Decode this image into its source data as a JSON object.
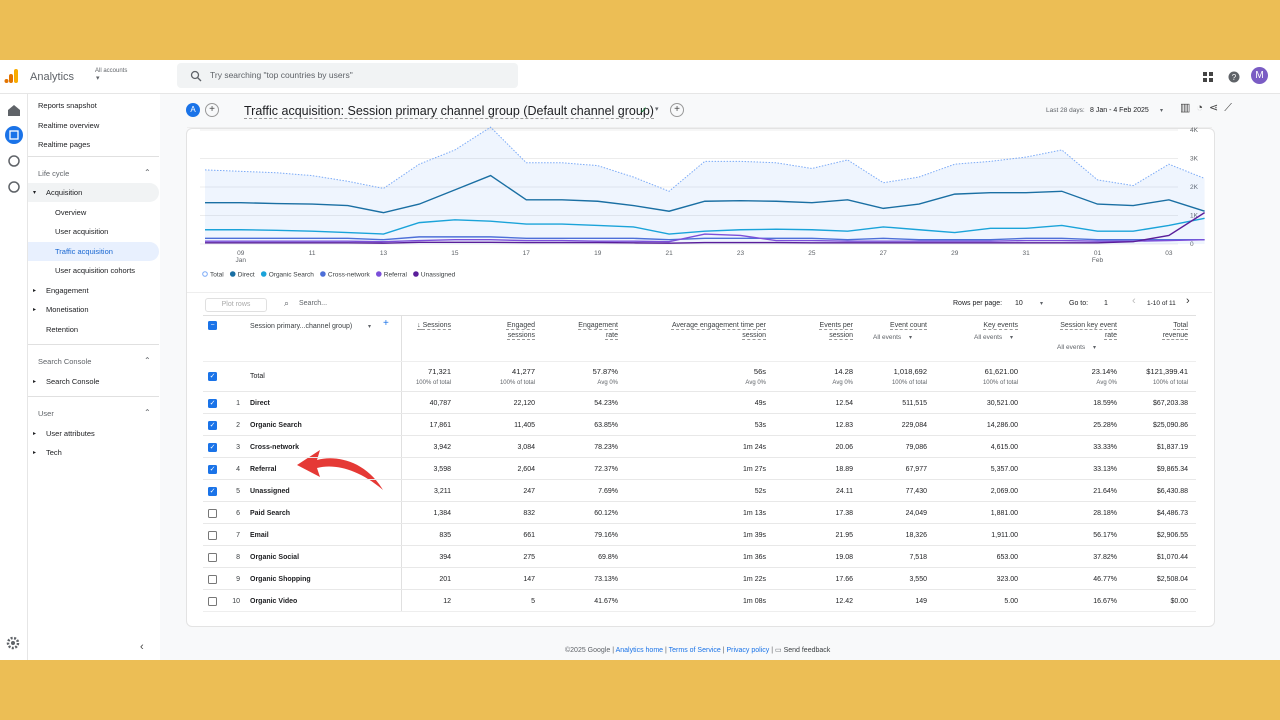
{
  "header": {
    "app": "Analytics",
    "account_label": "All accounts",
    "search": "Try searching \"top countries by users\"",
    "avatar": "M"
  },
  "nav": {
    "top": [
      "Reports snapshot",
      "Realtime overview",
      "Realtime pages"
    ],
    "sections": [
      {
        "title": "Life cycle",
        "groups": [
          {
            "label": "Acquisition",
            "expandable": true,
            "open": true,
            "items": [
              "Overview",
              "User acquisition",
              "Traffic acquisition",
              "User acquisition cohorts"
            ],
            "active": 2
          },
          {
            "label": "Engagement",
            "expandable": true
          },
          {
            "label": "Monetisation",
            "expandable": true
          },
          {
            "label": "Retention",
            "expandable": false
          }
        ]
      },
      {
        "title": "Search Console",
        "groups": [
          {
            "label": "Search Console",
            "expandable": true
          }
        ]
      },
      {
        "title": "User",
        "groups": [
          {
            "label": "User attributes",
            "expandable": true
          },
          {
            "label": "Tech",
            "expandable": true
          }
        ]
      }
    ]
  },
  "report": {
    "badge": "A",
    "title": "Traffic acquisition: Session primary channel group (Default channel group)",
    "date_label": "Last 28 days:",
    "date_range": "8 Jan - 4 Feb 2025"
  },
  "chart_data": {
    "type": "line",
    "categories": [
      null,
      "09",
      null,
      "11",
      null,
      "13",
      null,
      "15",
      null,
      "17",
      null,
      "19",
      null,
      "21",
      null,
      "23",
      null,
      "25",
      null,
      "27",
      null,
      "29",
      null,
      "31",
      null,
      "01",
      null,
      "03",
      null
    ],
    "sublabels": [
      null,
      "Jan",
      null,
      null,
      null,
      null,
      null,
      null,
      null,
      null,
      null,
      null,
      null,
      null,
      null,
      null,
      null,
      null,
      null,
      null,
      null,
      null,
      null,
      null,
      null,
      "Feb",
      null,
      null,
      null
    ],
    "ylim": [
      0,
      4000
    ],
    "yticks": [
      {
        "value": 0,
        "label": "0"
      },
      {
        "value": 1000,
        "label": "1K"
      },
      {
        "value": 2000,
        "label": "2K"
      },
      {
        "value": 3000,
        "label": "3K"
      },
      {
        "value": 4000,
        "label": "4K"
      }
    ],
    "series": [
      {
        "name": "Total",
        "color": "#7baaf7",
        "dashed": true,
        "fill": true,
        "values": [
          2600,
          2550,
          2500,
          2400,
          2200,
          1950,
          2800,
          3300,
          4100,
          2850,
          2850,
          2750,
          2350,
          1850,
          2900,
          2900,
          2850,
          2650,
          2950,
          2150,
          2350,
          2800,
          2900,
          3050,
          3300,
          2250,
          2050,
          2800,
          2300
        ]
      },
      {
        "name": "Direct",
        "color": "#1a6fa3",
        "values": [
          1450,
          1450,
          1420,
          1400,
          1350,
          1100,
          1400,
          1900,
          2400,
          1550,
          1550,
          1500,
          1350,
          1150,
          1500,
          1520,
          1500,
          1450,
          1550,
          1250,
          1400,
          1750,
          1800,
          1800,
          1850,
          1400,
          1350,
          1550,
          1150
        ]
      },
      {
        "name": "Organic Search",
        "color": "#1aa3d9",
        "values": [
          500,
          500,
          480,
          450,
          400,
          350,
          750,
          850,
          800,
          700,
          700,
          650,
          600,
          350,
          450,
          500,
          520,
          500,
          450,
          600,
          500,
          400,
          550,
          550,
          650,
          450,
          450,
          650,
          900
        ]
      },
      {
        "name": "Cross-network",
        "color": "#4d6fd8",
        "values": [
          200,
          200,
          200,
          200,
          200,
          150,
          250,
          250,
          250,
          200,
          200,
          200,
          200,
          150,
          200,
          200,
          200,
          200,
          150,
          200,
          150,
          150,
          150,
          200,
          200,
          150,
          150,
          150,
          150
        ]
      },
      {
        "name": "Referral",
        "color": "#7b4fd9",
        "values": [
          100,
          100,
          100,
          100,
          100,
          80,
          120,
          150,
          150,
          120,
          120,
          100,
          100,
          80,
          350,
          300,
          120,
          120,
          100,
          100,
          100,
          100,
          100,
          120,
          120,
          100,
          100,
          120,
          150
        ]
      },
      {
        "name": "Unassigned",
        "color": "#5a1e9a",
        "values": [
          40,
          40,
          40,
          40,
          40,
          30,
          60,
          60,
          60,
          50,
          50,
          50,
          40,
          30,
          50,
          50,
          50,
          40,
          40,
          40,
          40,
          40,
          40,
          40,
          40,
          40,
          80,
          300,
          1100
        ]
      }
    ]
  },
  "table": {
    "toolbar": {
      "plot": "Plot rows",
      "search": "Search...",
      "rows_per_page": "Rows per page:",
      "rows_value": "10",
      "goto": "Go to:",
      "goto_value": "1",
      "range": "1-10 of 11"
    },
    "first_column": "Session primary...channel group)",
    "columns": [
      {
        "label": "Sessions"
      },
      {
        "label": "Engaged sessions"
      },
      {
        "label": "Engagement rate"
      },
      {
        "label": "Average engagement time per session"
      },
      {
        "label": "Events per session"
      },
      {
        "label": "Event count",
        "sub": "All events"
      },
      {
        "label": "Key events",
        "sub": "All events"
      },
      {
        "label": "Session key event rate",
        "sub": "All events"
      },
      {
        "label": "Total revenue"
      }
    ],
    "total": {
      "label": "Total",
      "checked": true,
      "values": [
        "71,321",
        "41,277",
        "57.87%",
        "56s",
        "14.28",
        "1,018,692",
        "61,621.00",
        "23.14%",
        "$121,399.41"
      ],
      "subs": [
        "100% of total",
        "100% of total",
        "Avg 0%",
        "Avg 0%",
        "Avg 0%",
        "100% of total",
        "100% of total",
        "Avg 0%",
        "100% of total"
      ]
    },
    "rows": [
      {
        "rank": "1",
        "name": "Direct",
        "checked": true,
        "values": [
          "40,787",
          "22,120",
          "54.23%",
          "49s",
          "12.54",
          "511,515",
          "30,521.00",
          "18.59%",
          "$67,203.38"
        ]
      },
      {
        "rank": "2",
        "name": "Organic Search",
        "checked": true,
        "values": [
          "17,861",
          "11,405",
          "63.85%",
          "53s",
          "12.83",
          "229,084",
          "14,286.00",
          "25.28%",
          "$25,090.86"
        ]
      },
      {
        "rank": "3",
        "name": "Cross-network",
        "checked": true,
        "values": [
          "3,942",
          "3,084",
          "78.23%",
          "1m 24s",
          "20.06",
          "79,086",
          "4,615.00",
          "33.33%",
          "$1,837.19"
        ]
      },
      {
        "rank": "4",
        "name": "Referral",
        "checked": true,
        "values": [
          "3,598",
          "2,604",
          "72.37%",
          "1m 27s",
          "18.89",
          "67,977",
          "5,357.00",
          "33.13%",
          "$9,865.34"
        ]
      },
      {
        "rank": "5",
        "name": "Unassigned",
        "checked": true,
        "values": [
          "3,211",
          "247",
          "7.69%",
          "52s",
          "24.11",
          "77,430",
          "2,069.00",
          "21.64%",
          "$6,430.88"
        ]
      },
      {
        "rank": "6",
        "name": "Paid Search",
        "checked": false,
        "values": [
          "1,384",
          "832",
          "60.12%",
          "1m 13s",
          "17.38",
          "24,049",
          "1,881.00",
          "28.18%",
          "$4,486.73"
        ]
      },
      {
        "rank": "7",
        "name": "Email",
        "checked": false,
        "values": [
          "835",
          "661",
          "79.16%",
          "1m 39s",
          "21.95",
          "18,326",
          "1,911.00",
          "56.17%",
          "$2,906.55"
        ]
      },
      {
        "rank": "8",
        "name": "Organic Social",
        "checked": false,
        "values": [
          "394",
          "275",
          "69.8%",
          "1m 36s",
          "19.08",
          "7,518",
          "653.00",
          "37.82%",
          "$1,070.44"
        ]
      },
      {
        "rank": "9",
        "name": "Organic Shopping",
        "checked": false,
        "values": [
          "201",
          "147",
          "73.13%",
          "1m 22s",
          "17.66",
          "3,550",
          "323.00",
          "46.77%",
          "$2,508.04"
        ]
      },
      {
        "rank": "10",
        "name": "Organic Video",
        "checked": false,
        "values": [
          "12",
          "5",
          "41.67%",
          "1m 08s",
          "12.42",
          "149",
          "5.00",
          "16.67%",
          "$0.00"
        ]
      }
    ]
  },
  "footer": {
    "copyright": "©2025 Google |",
    "links": [
      "Analytics home",
      "Terms of Service",
      "Privacy policy"
    ],
    "feedback": "Send feedback"
  }
}
